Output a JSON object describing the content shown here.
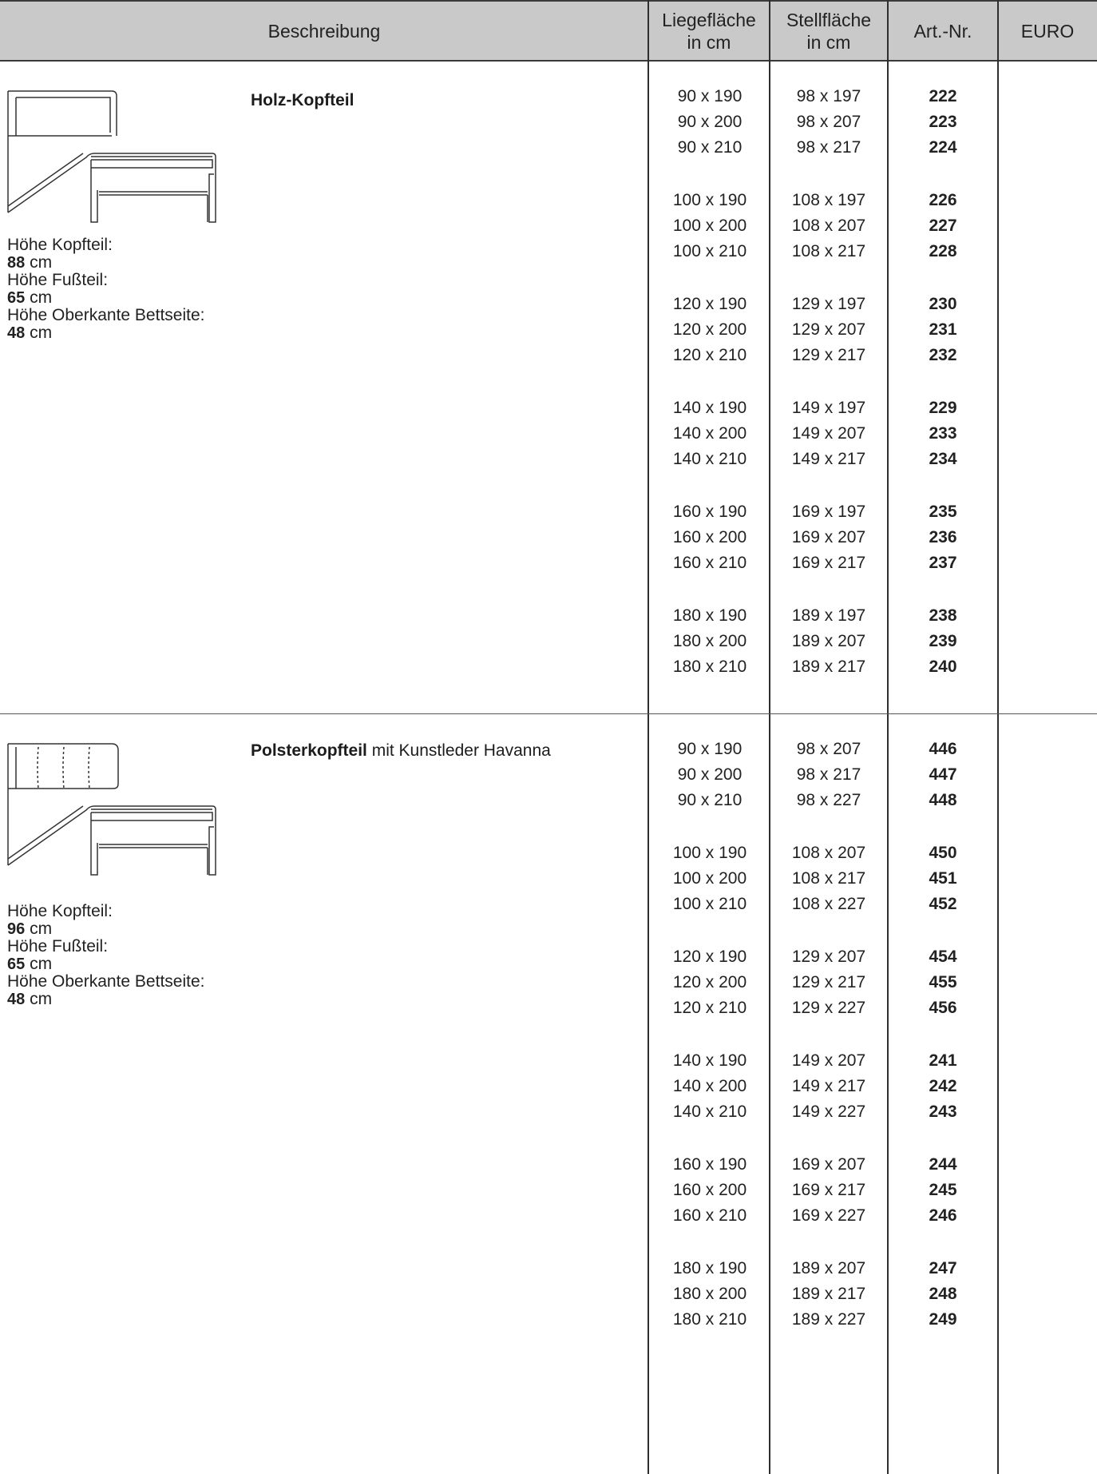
{
  "header": {
    "beschreibung": "Beschreibung",
    "liege_1": "Liegefläche",
    "liege_2": "in cm",
    "stell_1": "Stellfläche",
    "stell_2": "in cm",
    "artnr": "Art.-Nr.",
    "euro": "EURO"
  },
  "products": [
    {
      "title_bold": "Holz-Kopfteil",
      "title_rest": "",
      "specs": [
        {
          "label": "Höhe Kopfteil:",
          "value": "88",
          "unit": "cm"
        },
        {
          "label": "Höhe Fußteil:",
          "value": "65",
          "unit": "cm"
        },
        {
          "label": "Höhe Oberkante Bettseite:",
          "value": "48",
          "unit": "cm"
        }
      ],
      "groups": [
        [
          [
            "90 x 190",
            "98 x 197",
            "222"
          ],
          [
            "90 x 200",
            "98 x 207",
            "223"
          ],
          [
            "90 x 210",
            "98 x 217",
            "224"
          ]
        ],
        [
          [
            "100 x 190",
            "108 x 197",
            "226"
          ],
          [
            "100 x 200",
            "108 x 207",
            "227"
          ],
          [
            "100 x 210",
            "108 x 217",
            "228"
          ]
        ],
        [
          [
            "120 x 190",
            "129 x 197",
            "230"
          ],
          [
            "120 x 200",
            "129 x 207",
            "231"
          ],
          [
            "120 x 210",
            "129 x 217",
            "232"
          ]
        ],
        [
          [
            "140 x 190",
            "149 x 197",
            "229"
          ],
          [
            "140 x 200",
            "149 x 207",
            "233"
          ],
          [
            "140 x 210",
            "149 x 217",
            "234"
          ]
        ],
        [
          [
            "160 x 190",
            "169 x 197",
            "235"
          ],
          [
            "160 x 200",
            "169 x 207",
            "236"
          ],
          [
            "160 x 210",
            "169 x 217",
            "237"
          ]
        ],
        [
          [
            "180 x 190",
            "189 x 197",
            "238"
          ],
          [
            "180 x 200",
            "189 x 207",
            "239"
          ],
          [
            "180 x 210",
            "189 x 217",
            "240"
          ]
        ]
      ]
    },
    {
      "title_bold": "Polsterkopfteil",
      "title_rest": " mit Kunstleder Havanna",
      "specs": [
        {
          "label": "Höhe Kopfteil:",
          "value": "96",
          "unit": "cm"
        },
        {
          "label": "Höhe Fußteil:",
          "value": "65",
          "unit": "cm"
        },
        {
          "label": "Höhe Oberkante Bettseite:",
          "value": "48",
          "unit": "cm"
        }
      ],
      "groups": [
        [
          [
            "90 x 190",
            "98 x 207",
            "446"
          ],
          [
            "90 x 200",
            "98 x 217",
            "447"
          ],
          [
            "90 x 210",
            "98 x 227",
            "448"
          ]
        ],
        [
          [
            "100 x 190",
            "108 x 207",
            "450"
          ],
          [
            "100 x 200",
            "108 x 217",
            "451"
          ],
          [
            "100 x 210",
            "108 x 227",
            "452"
          ]
        ],
        [
          [
            "120 x 190",
            "129 x 207",
            "454"
          ],
          [
            "120 x 200",
            "129 x 217",
            "455"
          ],
          [
            "120 x 210",
            "129 x 227",
            "456"
          ]
        ],
        [
          [
            "140 x 190",
            "149 x 207",
            "241"
          ],
          [
            "140 x 200",
            "149 x 217",
            "242"
          ],
          [
            "140 x 210",
            "149 x 227",
            "243"
          ]
        ],
        [
          [
            "160 x 190",
            "169 x 207",
            "244"
          ],
          [
            "160 x 200",
            "169 x 217",
            "245"
          ],
          [
            "160 x 210",
            "169 x 227",
            "246"
          ]
        ],
        [
          [
            "180 x 190",
            "189 x 207",
            "247"
          ],
          [
            "180 x 200",
            "189 x 217",
            "248"
          ],
          [
            "180 x 210",
            "189 x 227",
            "249"
          ]
        ]
      ]
    }
  ]
}
